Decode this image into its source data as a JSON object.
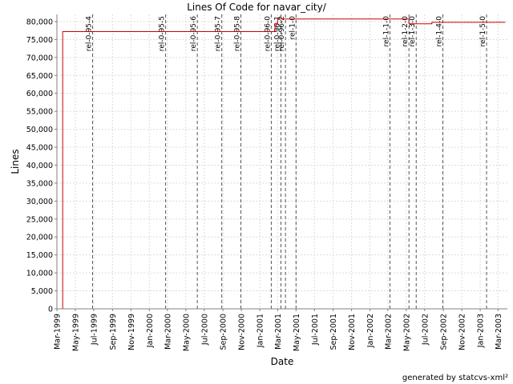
{
  "chart_data": {
    "type": "line",
    "title": "Lines Of Code for navar_city/",
    "xlabel": "Date",
    "ylabel": "Lines",
    "footer": "generated by statcvs-xml²",
    "x_range": [
      "1999-03-01",
      "2003-04-01"
    ],
    "ylim": [
      0,
      82000
    ],
    "grid": true,
    "y_ticks": [
      0,
      5000,
      10000,
      15000,
      20000,
      25000,
      30000,
      35000,
      40000,
      45000,
      50000,
      55000,
      60000,
      65000,
      70000,
      75000,
      80000
    ],
    "y_tick_labels": [
      "0",
      "5,000",
      "10,000",
      "15,000",
      "20,000",
      "25,000",
      "30,000",
      "35,000",
      "40,000",
      "45,000",
      "50,000",
      "55,000",
      "60,000",
      "65,000",
      "70,000",
      "75,000",
      "80,000"
    ],
    "x_ticks": [
      "1999-03-01",
      "1999-05-01",
      "1999-07-01",
      "1999-09-01",
      "1999-11-01",
      "2000-01-01",
      "2000-03-01",
      "2000-05-01",
      "2000-07-01",
      "2000-09-01",
      "2000-11-01",
      "2001-01-01",
      "2001-03-01",
      "2001-05-01",
      "2001-07-01",
      "2001-09-01",
      "2001-11-01",
      "2002-01-01",
      "2002-03-01",
      "2002-05-01",
      "2002-07-01",
      "2002-09-01",
      "2002-11-01",
      "2003-01-01",
      "2003-03-01"
    ],
    "x_tick_labels": [
      "Mar-1999",
      "May-1999",
      "Jul-1999",
      "Sep-1999",
      "Nov-1999",
      "Jan-2000",
      "Mar-2000",
      "May-2000",
      "Jul-2000",
      "Sep-2000",
      "Nov-2000",
      "Jan-2001",
      "Mar-2001",
      "May-2001",
      "Jul-2001",
      "Sep-2001",
      "Nov-2001",
      "Jan-2002",
      "Mar-2002",
      "May-2002",
      "Jul-2002",
      "Sep-2002",
      "Nov-2002",
      "Jan-2003",
      "Mar-2003"
    ],
    "series": [
      {
        "color": "#cc0000",
        "points": [
          {
            "x": "1999-03-20",
            "y": 0
          },
          {
            "x": "1999-03-20",
            "y": 77200
          },
          {
            "x": "2001-02-20",
            "y": 77200
          },
          {
            "x": "2001-02-20",
            "y": 79500
          },
          {
            "x": "2001-03-01",
            "y": 79500
          },
          {
            "x": "2001-03-01",
            "y": 80700
          },
          {
            "x": "2002-05-10",
            "y": 80700
          },
          {
            "x": "2002-05-10",
            "y": 79400
          },
          {
            "x": "2002-07-25",
            "y": 79400
          },
          {
            "x": "2002-07-25",
            "y": 79800
          },
          {
            "x": "2003-03-25",
            "y": 79800
          }
        ]
      }
    ],
    "markers": [
      {
        "label": "rel-0-95-4",
        "x": "1999-06-27"
      },
      {
        "label": "rel-0-95-5",
        "x": "2000-02-24"
      },
      {
        "label": "rel-0-95-6",
        "x": "2000-06-08"
      },
      {
        "label": "rel-0-95-7",
        "x": "2000-08-28"
      },
      {
        "label": "rel-0-95-8",
        "x": "2000-10-30"
      },
      {
        "label": "rel-0-96-0",
        "x": "2001-02-08"
      },
      {
        "label": "rel-0-96-1",
        "x": "2001-03-12"
      },
      {
        "label": "rel-0-96-2",
        "x": "2001-03-27"
      },
      {
        "label": "rel-1-0",
        "x": "2001-05-01"
      },
      {
        "label": "rel-1-1-0",
        "x": "2002-03-08"
      },
      {
        "label": "rel-1-2-0",
        "x": "2002-05-10"
      },
      {
        "label": "rel-1-3-0",
        "x": "2002-06-03"
      },
      {
        "label": "rel-1-4-0",
        "x": "2002-08-30"
      },
      {
        "label": "rel-1-5-0",
        "x": "2003-01-22"
      }
    ]
  }
}
